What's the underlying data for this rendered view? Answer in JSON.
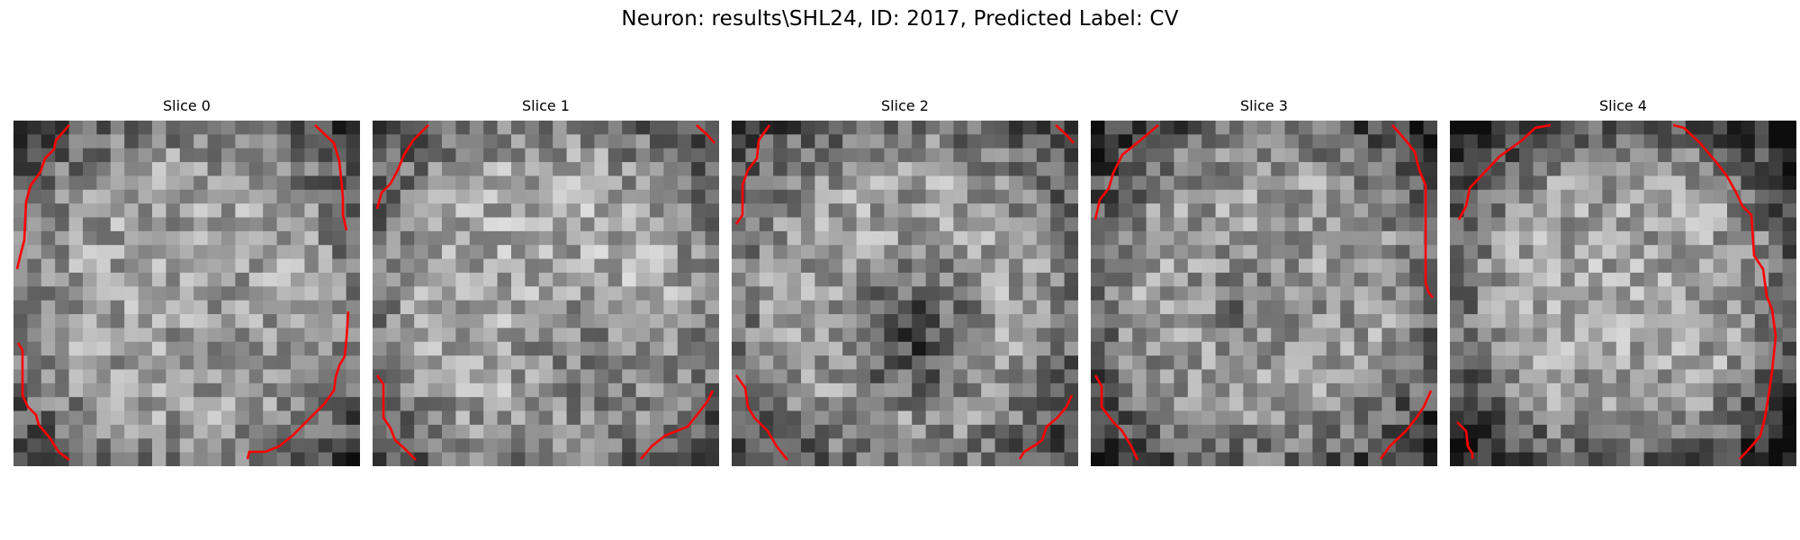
{
  "figure": {
    "title": "Neuron: results\\SHL24, ID: 2017, Predicted Label: CV"
  },
  "colors": {
    "contour": "#ff0000",
    "background": "#ffffff"
  },
  "panels": [
    {
      "title": "Slice 0"
    },
    {
      "title": "Slice 1"
    },
    {
      "title": "Slice 2"
    },
    {
      "title": "Slice 3"
    },
    {
      "title": "Slice 4"
    }
  ]
}
